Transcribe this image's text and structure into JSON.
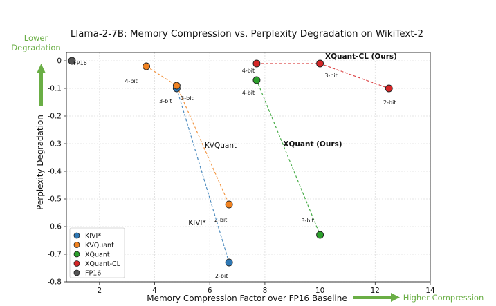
{
  "chart_data": {
    "type": "scatter",
    "title": "Llama-2-7B: Memory Compression vs. Perplexity Degradation on WikiText-2",
    "xlabel": "Memory Compression Factor over FP16 Baseline",
    "ylabel": "Perplexity Degradation",
    "xlim": [
      0.8,
      14
    ],
    "ylim": [
      -0.8,
      0.03
    ],
    "xticks": [
      2,
      4,
      6,
      8,
      10,
      12,
      14
    ],
    "yticks": [
      0,
      -0.1,
      -0.2,
      -0.3,
      -0.4,
      -0.5,
      -0.6,
      -0.7,
      -0.8
    ],
    "grid": true,
    "legend_position": "lower-left",
    "series": [
      {
        "name": "KIVI*",
        "color": "#2f78b4",
        "annotation": "KIVI*",
        "points": [
          {
            "x": 4.8,
            "y": -0.1,
            "label": "3-bit"
          },
          {
            "x": 6.7,
            "y": -0.73,
            "label": "2-bit"
          }
        ]
      },
      {
        "name": "KVQuant",
        "color": "#f08221",
        "annotation": "KVQuant",
        "points": [
          {
            "x": 3.7,
            "y": -0.02,
            "label": "4-bit"
          },
          {
            "x": 4.8,
            "y": -0.09,
            "label": "3-bit"
          },
          {
            "x": 6.7,
            "y": -0.52,
            "label": "2-bit"
          }
        ]
      },
      {
        "name": "XQuant",
        "color": "#2ca02c",
        "annotation": "XQuant (Ours)",
        "points": [
          {
            "x": 7.7,
            "y": -0.07,
            "label": "4-bit"
          },
          {
            "x": 10.0,
            "y": -0.63,
            "label": "3-bit"
          }
        ]
      },
      {
        "name": "XQuant-CL",
        "color": "#d62728",
        "annotation": "XQuant-CL (Ours)",
        "points": [
          {
            "x": 7.7,
            "y": -0.01,
            "label": "4-bit"
          },
          {
            "x": 10.0,
            "y": -0.01,
            "label": "3-bit"
          },
          {
            "x": 12.5,
            "y": -0.1,
            "label": "2-bit"
          }
        ]
      },
      {
        "name": "FP16",
        "color": "#555555",
        "annotation": "",
        "points": [
          {
            "x": 1.0,
            "y": 0.0,
            "label": "FP16"
          }
        ]
      }
    ],
    "arrows": {
      "up_label": "Lower\nDegradation",
      "right_label": "Higher Compression",
      "color": "#6aae45"
    }
  }
}
